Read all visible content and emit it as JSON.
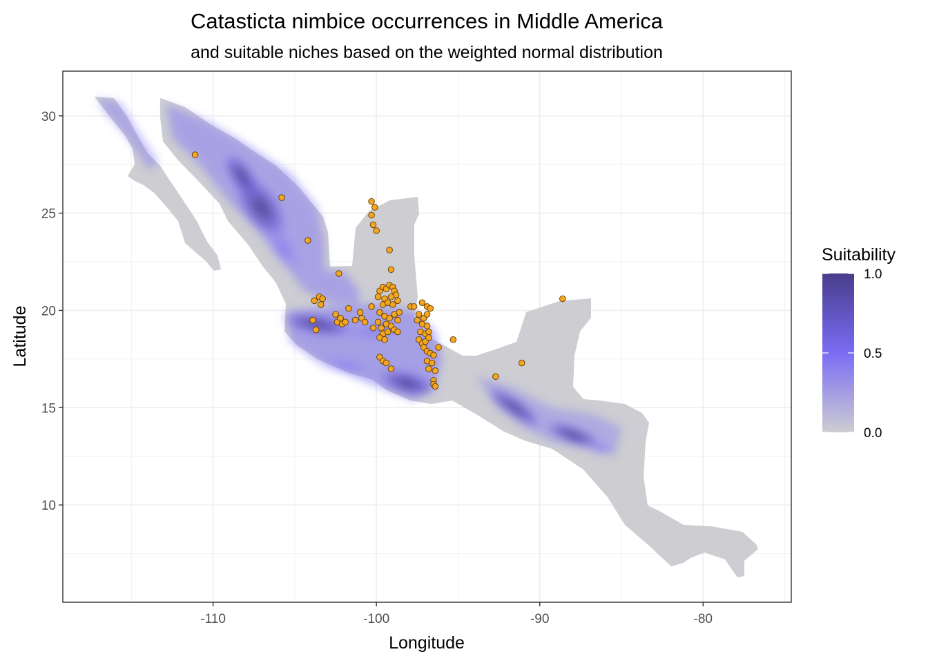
{
  "chart_data": {
    "type": "scatter",
    "title": "Catasticta nimbice occurrences in Middle America",
    "subtitle": "and suitable niches based on the weighted normal distribution",
    "xlabel": "Longitude",
    "ylabel": "Latitude",
    "xlim": [
      -119.2,
      -74.6
    ],
    "ylim": [
      5.0,
      32.3
    ],
    "x_ticks": [
      -110,
      -100,
      -90,
      -80
    ],
    "x_tick_labels": [
      "-110",
      "-100",
      "-90",
      "-80"
    ],
    "y_ticks": [
      10,
      15,
      20,
      25,
      30
    ],
    "y_tick_labels": [
      "10",
      "15",
      "20",
      "25",
      "30"
    ],
    "grid": true,
    "legend": {
      "title": "Suitability",
      "position": "right",
      "breaks": [
        1.0,
        0.5,
        0.0
      ],
      "labels": [
        "1.0",
        "0.5",
        "0.0"
      ],
      "colors": {
        "low": "#cdcdd2",
        "mid": "#7b6cf4",
        "high": "#483d8b"
      }
    },
    "point_color": "#f4a623",
    "point_stroke": "#5a3a00",
    "region_color": "#cdcdd2",
    "occurrences": [
      {
        "x": -111.1,
        "y": 28.0
      },
      {
        "x": -105.8,
        "y": 25.8
      },
      {
        "x": -104.2,
        "y": 23.6
      },
      {
        "x": -102.3,
        "y": 21.9
      },
      {
        "x": -100.3,
        "y": 25.6
      },
      {
        "x": -100.1,
        "y": 25.3
      },
      {
        "x": -100.3,
        "y": 24.9
      },
      {
        "x": -100.2,
        "y": 24.4
      },
      {
        "x": -100.0,
        "y": 24.1
      },
      {
        "x": -99.2,
        "y": 23.1
      },
      {
        "x": -99.1,
        "y": 22.1
      },
      {
        "x": -88.6,
        "y": 20.6
      },
      {
        "x": -103.8,
        "y": 20.5
      },
      {
        "x": -103.5,
        "y": 20.7
      },
      {
        "x": -103.3,
        "y": 20.6
      },
      {
        "x": -103.4,
        "y": 20.3
      },
      {
        "x": -103.9,
        "y": 19.5
      },
      {
        "x": -103.7,
        "y": 19.0
      },
      {
        "x": -102.5,
        "y": 19.8
      },
      {
        "x": -102.4,
        "y": 19.4
      },
      {
        "x": -102.2,
        "y": 19.6
      },
      {
        "x": -102.1,
        "y": 19.3
      },
      {
        "x": -101.9,
        "y": 19.4
      },
      {
        "x": -101.7,
        "y": 20.1
      },
      {
        "x": -101.3,
        "y": 19.5
      },
      {
        "x": -101.0,
        "y": 19.9
      },
      {
        "x": -100.9,
        "y": 19.6
      },
      {
        "x": -100.7,
        "y": 19.4
      },
      {
        "x": -100.3,
        "y": 20.2
      },
      {
        "x": -100.2,
        "y": 19.1
      },
      {
        "x": -99.9,
        "y": 20.7
      },
      {
        "x": -99.8,
        "y": 21.0
      },
      {
        "x": -99.6,
        "y": 21.2
      },
      {
        "x": -99.4,
        "y": 21.1
      },
      {
        "x": -99.2,
        "y": 21.3
      },
      {
        "x": -99.0,
        "y": 21.2
      },
      {
        "x": -98.9,
        "y": 21.0
      },
      {
        "x": -98.8,
        "y": 20.8
      },
      {
        "x": -99.5,
        "y": 20.6
      },
      {
        "x": -99.1,
        "y": 20.7
      },
      {
        "x": -98.7,
        "y": 20.5
      },
      {
        "x": -99.6,
        "y": 20.3
      },
      {
        "x": -99.3,
        "y": 20.4
      },
      {
        "x": -99.0,
        "y": 20.3
      },
      {
        "x": -99.8,
        "y": 19.9
      },
      {
        "x": -99.5,
        "y": 19.7
      },
      {
        "x": -99.2,
        "y": 19.6
      },
      {
        "x": -98.9,
        "y": 19.8
      },
      {
        "x": -98.7,
        "y": 19.5
      },
      {
        "x": -98.6,
        "y": 19.9
      },
      {
        "x": -99.9,
        "y": 19.4
      },
      {
        "x": -99.7,
        "y": 19.1
      },
      {
        "x": -99.4,
        "y": 19.3
      },
      {
        "x": -99.1,
        "y": 19.2
      },
      {
        "x": -98.9,
        "y": 19.0
      },
      {
        "x": -99.6,
        "y": 18.8
      },
      {
        "x": -99.3,
        "y": 18.9
      },
      {
        "x": -98.7,
        "y": 18.9
      },
      {
        "x": -99.8,
        "y": 18.6
      },
      {
        "x": -99.5,
        "y": 18.5
      },
      {
        "x": -97.9,
        "y": 20.2
      },
      {
        "x": -97.7,
        "y": 20.2
      },
      {
        "x": -97.2,
        "y": 20.4
      },
      {
        "x": -96.9,
        "y": 20.2
      },
      {
        "x": -96.7,
        "y": 20.1
      },
      {
        "x": -97.4,
        "y": 19.8
      },
      {
        "x": -97.1,
        "y": 19.6
      },
      {
        "x": -96.9,
        "y": 19.8
      },
      {
        "x": -97.5,
        "y": 19.5
      },
      {
        "x": -97.2,
        "y": 19.3
      },
      {
        "x": -96.9,
        "y": 19.2
      },
      {
        "x": -97.3,
        "y": 18.9
      },
      {
        "x": -97.0,
        "y": 18.8
      },
      {
        "x": -96.8,
        "y": 18.9
      },
      {
        "x": -97.4,
        "y": 18.5
      },
      {
        "x": -97.2,
        "y": 18.3
      },
      {
        "x": -97.0,
        "y": 18.4
      },
      {
        "x": -96.8,
        "y": 18.6
      },
      {
        "x": -97.1,
        "y": 18.1
      },
      {
        "x": -96.9,
        "y": 17.9
      },
      {
        "x": -96.7,
        "y": 17.8
      },
      {
        "x": -96.5,
        "y": 17.7
      },
      {
        "x": -96.2,
        "y": 18.1
      },
      {
        "x": -96.9,
        "y": 17.4
      },
      {
        "x": -96.6,
        "y": 17.3
      },
      {
        "x": -96.8,
        "y": 17.0
      },
      {
        "x": -96.4,
        "y": 16.9
      },
      {
        "x": -96.5,
        "y": 16.4
      },
      {
        "x": -96.5,
        "y": 16.2
      },
      {
        "x": -96.4,
        "y": 16.1
      },
      {
        "x": -95.3,
        "y": 18.5
      },
      {
        "x": -99.8,
        "y": 17.6
      },
      {
        "x": -99.6,
        "y": 17.4
      },
      {
        "x": -99.4,
        "y": 17.3
      },
      {
        "x": -99.1,
        "y": 17.0
      },
      {
        "x": -92.7,
        "y": 16.6
      },
      {
        "x": -91.1,
        "y": 17.3
      }
    ]
  }
}
